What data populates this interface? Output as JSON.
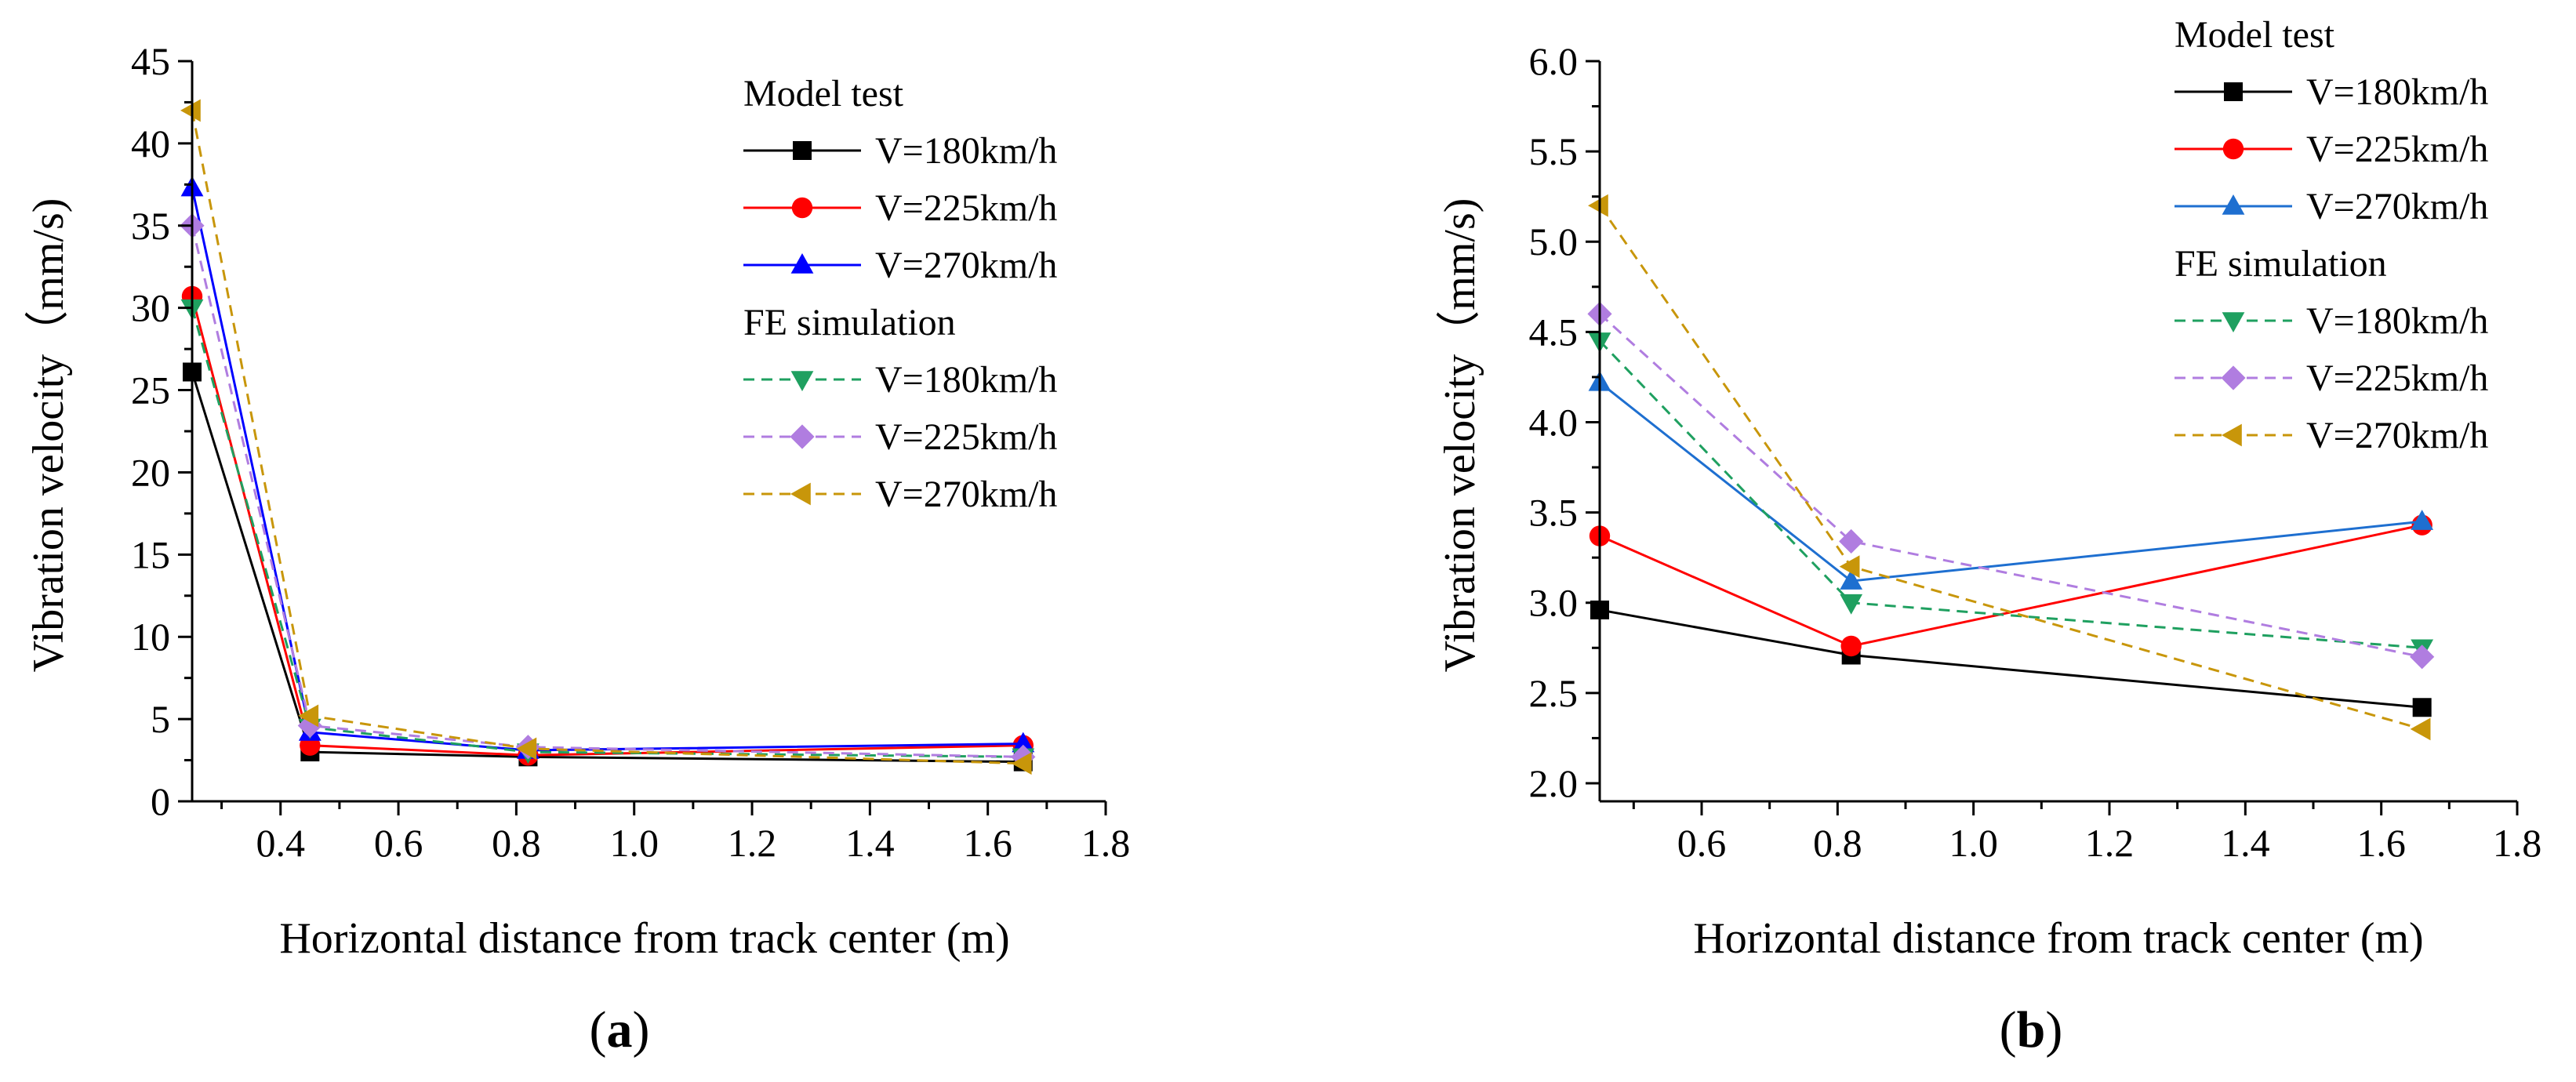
{
  "chart_data": [
    {
      "type": "line",
      "panel": "a",
      "panel_label": "a",
      "xlabel": "Horizontal distance from track center (m)",
      "ylabel": "Vibration velocity（mm/s)",
      "xlim": [
        0.25,
        1.8
      ],
      "ylim": [
        0,
        45
      ],
      "xticks": [
        0.4,
        0.6,
        0.8,
        1.0,
        1.2,
        1.4,
        1.6,
        1.8
      ],
      "xtick_labels": [
        "0.4",
        "0.6",
        "0.8",
        "1.0",
        "1.2",
        "1.4",
        "1.6",
        "1.8"
      ],
      "yticks": [
        0,
        5,
        10,
        15,
        20,
        25,
        30,
        35,
        40,
        45
      ],
      "ytick_labels": [
        "0",
        "5",
        "10",
        "15",
        "20",
        "25",
        "30",
        "35",
        "40",
        "45"
      ],
      "x": [
        0.25,
        0.45,
        0.82,
        1.66
      ],
      "legend_groups": [
        "Model test",
        "FE simulation"
      ],
      "series": [
        {
          "name": "V=180km/h",
          "group": "Model test",
          "color": "#000000",
          "dash": "solid",
          "marker": "square",
          "values": [
            26.1,
            3.0,
            2.7,
            2.4
          ]
        },
        {
          "name": "V=225km/h",
          "group": "Model test",
          "color": "#ff0000",
          "dash": "solid",
          "marker": "circle",
          "values": [
            30.7,
            3.4,
            2.8,
            3.4
          ]
        },
        {
          "name": "V=270km/h",
          "group": "Model test",
          "color": "#0000ff",
          "dash": "solid",
          "marker": "triangle-up",
          "values": [
            37.3,
            4.2,
            3.1,
            3.5
          ]
        },
        {
          "name": "V=180km/h",
          "group": "FE simulation",
          "color": "#1fa060",
          "dash": "dashed",
          "marker": "triangle-down",
          "values": [
            30.0,
            4.5,
            3.0,
            2.7
          ]
        },
        {
          "name": "V=225km/h",
          "group": "FE simulation",
          "color": "#b07de0",
          "dash": "dashed",
          "marker": "diamond",
          "values": [
            35.0,
            4.6,
            3.3,
            2.7
          ]
        },
        {
          "name": "V=270km/h",
          "group": "FE simulation",
          "color": "#c8960a",
          "dash": "dashed",
          "marker": "triangle-left",
          "values": [
            42.0,
            5.2,
            3.2,
            2.3
          ]
        }
      ]
    },
    {
      "type": "line",
      "panel": "b",
      "panel_label": "b",
      "xlabel": "Horizontal distance from track center (m)",
      "ylabel": "Vibration velocity（mm/s)",
      "xlim": [
        0.45,
        1.8
      ],
      "ylim": [
        1.9,
        6.0
      ],
      "xticks": [
        0.6,
        0.8,
        1.0,
        1.2,
        1.4,
        1.6,
        1.8
      ],
      "xtick_labels": [
        "0.6",
        "0.8",
        "1.0",
        "1.2",
        "1.4",
        "1.6",
        "1.8"
      ],
      "yticks": [
        2.0,
        2.5,
        3.0,
        3.5,
        4.0,
        4.5,
        5.0,
        5.5,
        6.0
      ],
      "ytick_labels": [
        "2.0",
        "2.5",
        "3.0",
        "3.5",
        "4.0",
        "4.5",
        "5.0",
        "5.5",
        "6.0"
      ],
      "x": [
        0.45,
        0.82,
        1.66
      ],
      "legend_groups": [
        "Model test",
        "FE simulation"
      ],
      "series": [
        {
          "name": "V=180km/h",
          "group": "Model test",
          "color": "#000000",
          "dash": "solid",
          "marker": "square",
          "values": [
            2.96,
            2.71,
            2.42
          ]
        },
        {
          "name": "V=225km/h",
          "group": "Model test",
          "color": "#ff0000",
          "dash": "solid",
          "marker": "circle",
          "values": [
            3.37,
            2.76,
            3.43
          ]
        },
        {
          "name": "V=270km/h",
          "group": "Model test",
          "color": "#1e6fd0",
          "dash": "solid",
          "marker": "triangle-up",
          "values": [
            4.22,
            3.12,
            3.45
          ]
        },
        {
          "name": "V=180km/h",
          "group": "FE simulation",
          "color": "#1fa060",
          "dash": "dashed",
          "marker": "triangle-down",
          "values": [
            4.45,
            3.0,
            2.75
          ]
        },
        {
          "name": "V=225km/h",
          "group": "FE simulation",
          "color": "#b07de0",
          "dash": "dashed",
          "marker": "diamond",
          "values": [
            4.6,
            3.34,
            2.7
          ]
        },
        {
          "name": "V=270km/h",
          "group": "FE simulation",
          "color": "#c8960a",
          "dash": "dashed",
          "marker": "triangle-left",
          "values": [
            5.2,
            3.2,
            2.3
          ]
        }
      ]
    }
  ]
}
